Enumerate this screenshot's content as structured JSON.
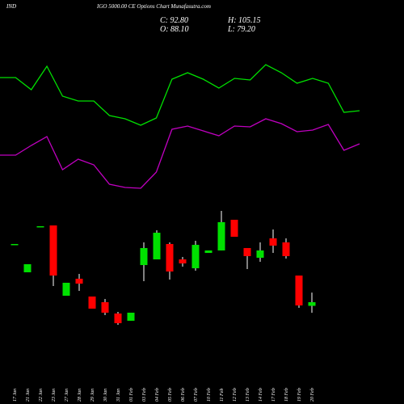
{
  "chart_data": {
    "type": "candlestick",
    "title_left": "IND",
    "title": "IGO 5000.00  CE Options  Chart Munafasutra.com",
    "stats": [
      "C: 92.80",
      "H: 105.15",
      "O: 88.10",
      "L: 79.20"
    ],
    "categories": [
      "17 Jan",
      "21 Jan",
      "22 Jan",
      "23 Jan",
      "27 Jan",
      "28 Jan",
      "29 Jan",
      "30 Jan",
      "31 Jan",
      "01 Feb",
      "03 Feb",
      "04 Feb",
      "05 Feb",
      "06 Feb",
      "07 Feb",
      "10 Feb",
      "11 Feb",
      "12 Feb",
      "13 Feb",
      "14 Feb",
      "17 Feb",
      "18 Feb",
      "19 Feb",
      "20 Feb"
    ],
    "open": [
      167.7,
      131.3,
      190.6,
      191.6,
      101.1,
      123.0,
      100.1,
      92.8,
      78.2,
      68.9,
      140.6,
      147.9,
      167.7,
      147.9,
      136.5,
      156.2,
      159.4,
      198.9,
      162.5,
      150.0,
      175.0,
      169.8,
      127.1,
      88.1
    ],
    "high": [
      167.7,
      141.7,
      190.6,
      191.6,
      117.8,
      129.2,
      100.1,
      97.0,
      80.3,
      79.3,
      169.8,
      185.4,
      169.8,
      151.0,
      171.8,
      159.4,
      210.3,
      198.9,
      162.5,
      169.8,
      186.4,
      175.0,
      127.1,
      105.15
    ],
    "low": [
      167.7,
      131.3,
      190.6,
      113.6,
      101.1,
      107.4,
      84.5,
      76.2,
      63.7,
      68.9,
      119.8,
      147.9,
      121.9,
      138.6,
      133.4,
      156.2,
      159.4,
      177.0,
      135.4,
      144.8,
      156.2,
      149.0,
      85.5,
      79.2
    ],
    "close": [
      167.7,
      141.7,
      190.6,
      127.1,
      117.8,
      116.7,
      84.5,
      79.3,
      65.8,
      79.3,
      162.5,
      182.2,
      132.3,
      142.7,
      166.6,
      159.4,
      195.8,
      177.0,
      152.1,
      159.4,
      165.6,
      152.1,
      88.6,
      92.8
    ],
    "ylim": [
      55.4,
      221.8
    ],
    "up_color": "#00e000",
    "down_color": "#ff0000",
    "lines": [
      {
        "color": "#00e000",
        "values": [
          77,
          77,
          69.5,
          84,
          65.5,
          62.5,
          62.5,
          53.5,
          51.5,
          47.5,
          52,
          76,
          80,
          76,
          70.5,
          76.5,
          75.5,
          85,
          80,
          73.5,
          76.5,
          73.5,
          55.5,
          56.5
        ]
      },
      {
        "color": "#c000c0",
        "values": [
          29,
          29,
          35,
          40.5,
          20,
          26.5,
          23,
          11,
          9,
          8.5,
          18.5,
          45,
          47,
          44,
          41,
          47,
          46.5,
          51.5,
          48.5,
          43.5,
          44.5,
          48,
          32,
          36
        ]
      }
    ],
    "lines_ylim": [
      0,
      100
    ]
  }
}
